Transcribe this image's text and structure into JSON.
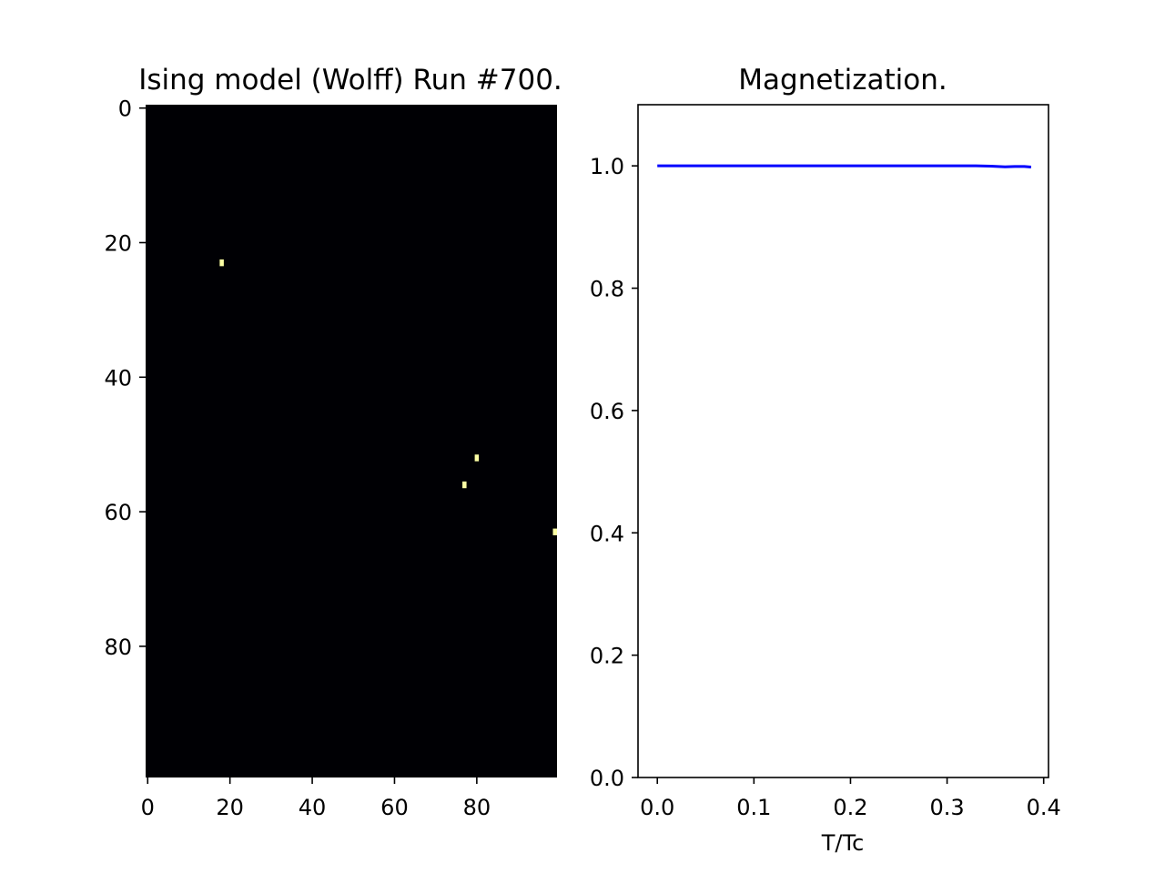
{
  "figure": {
    "background": "#ffffff"
  },
  "chart_data": [
    {
      "type": "heatmap",
      "title": "Ising model (Wolff) Run #700.",
      "xlabel": "",
      "ylabel": "",
      "grid_cols": 100,
      "grid_rows": 100,
      "xlim": [
        0,
        100
      ],
      "ylim": [
        100,
        0
      ],
      "xticks": [
        0,
        20,
        40,
        60,
        80
      ],
      "yticks": [
        0,
        20,
        40,
        60,
        80
      ],
      "background_value": -1,
      "colors": {
        "spin_down": "#000004",
        "spin_up": "#fcffa4"
      },
      "flipped_spins": [
        {
          "x": 18,
          "y": 23
        },
        {
          "x": 80,
          "y": 52
        },
        {
          "x": 77,
          "y": 56
        },
        {
          "x": 99,
          "y": 63
        }
      ],
      "grid": false
    },
    {
      "type": "line",
      "title": "Magnetization.",
      "xlabel": "T/Tc",
      "ylabel": "",
      "xlim": [
        -0.02,
        0.405
      ],
      "ylim": [
        0.0,
        1.1
      ],
      "xticks": [
        "0.0",
        "0.1",
        "0.2",
        "0.3",
        "0.4"
      ],
      "yticks": [
        "0.0",
        "0.2",
        "0.4",
        "0.6",
        "0.8",
        "1.0"
      ],
      "series": [
        {
          "color": "#0000ff",
          "x": [
            0.0,
            0.05,
            0.1,
            0.15,
            0.2,
            0.25,
            0.3,
            0.33,
            0.345,
            0.36,
            0.37,
            0.38,
            0.387
          ],
          "y": [
            1.0,
            1.0,
            1.0,
            1.0,
            1.0,
            1.0,
            1.0,
            1.0,
            0.9995,
            0.9985,
            0.999,
            0.999,
            0.998
          ]
        }
      ],
      "grid": false
    }
  ]
}
